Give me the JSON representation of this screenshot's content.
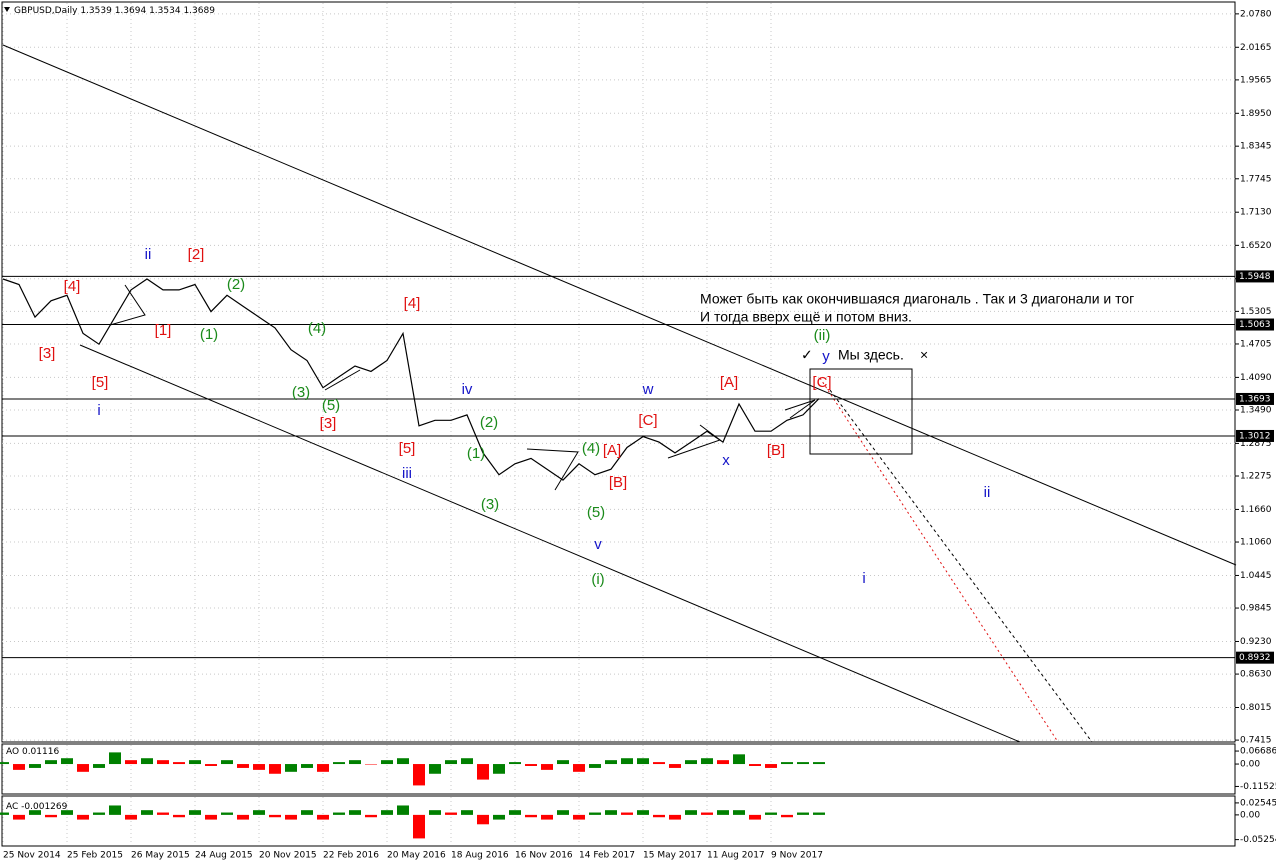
{
  "chart_data": [
    {
      "type": "line",
      "title": "GBPUSD,Daily",
      "ohlc": [
        1.3539,
        1.3694,
        1.3534,
        1.3689
      ],
      "categories": [
        "25 Nov 2014",
        null,
        null,
        null,
        "25 Feb 2015",
        null,
        null,
        null,
        "26 May 2015",
        null,
        null,
        null,
        "24 Aug 2015",
        null,
        null,
        null,
        "20 Nov 2015",
        null,
        null,
        null,
        "22 Feb 2016",
        null,
        null,
        null,
        "20 May 2016",
        null,
        null,
        null,
        "18 Aug 2016",
        null,
        null,
        null,
        "16 Nov 2016",
        null,
        null,
        null,
        "14 Feb 2017",
        null,
        null,
        null,
        "15 May 2017",
        null,
        null,
        null,
        "11 Aug 2017",
        null,
        null,
        null,
        "9 Nov 2017",
        null,
        null,
        null
      ],
      "values": [
        1.59,
        1.58,
        1.52,
        1.55,
        1.56,
        1.49,
        1.47,
        1.52,
        1.57,
        1.59,
        1.57,
        1.57,
        1.58,
        1.53,
        1.56,
        1.54,
        1.52,
        1.5,
        1.46,
        1.44,
        1.39,
        1.41,
        1.43,
        1.42,
        1.44,
        1.49,
        1.32,
        1.33,
        1.33,
        1.34,
        1.27,
        1.23,
        1.25,
        1.26,
        1.24,
        1.22,
        1.25,
        1.23,
        1.24,
        1.28,
        1.3,
        1.29,
        1.27,
        1.29,
        1.31,
        1.29,
        1.36,
        1.31,
        1.31,
        1.33,
        1.34,
        1.37
      ],
      "color": "#000000",
      "ylim": [
        0.738,
        2.098
      ],
      "yticks": [
        {
          "value": 2.078,
          "label": "2.0780"
        },
        2.0165,
        1.9565,
        {
          "value": 1.895,
          "label": "1.8950"
        },
        1.8345,
        1.7745,
        {
          "value": 1.713,
          "label": "1.7130"
        },
        {
          "value": 1.652,
          "label": "1.6520"
        },
        1.5905,
        1.5305,
        1.4705,
        {
          "value": 1.409,
          "label": "1.4090"
        },
        {
          "value": 1.349,
          "label": "1.3490"
        },
        1.2875,
        1.2275,
        {
          "value": 1.166,
          "label": "1.1660"
        },
        {
          "value": 1.106,
          "label": "1.1060"
        },
        1.0445,
        0.9845,
        {
          "value": 0.923,
          "label": "0.9230"
        },
        {
          "value": 0.863,
          "label": "0.8630"
        },
        0.8015,
        0.7415
      ],
      "grid": true,
      "levels": [
        1.5948,
        1.5063,
        1.3693,
        1.3012,
        0.8932
      ],
      "annotations": [
        "[4]",
        "[3]",
        "[5]",
        "i",
        "ii",
        "[2]",
        "[1]",
        "(2)",
        "(1)",
        "(4)",
        "(3)",
        "(5)",
        "[3]",
        "[4]",
        "[5]",
        "iii",
        "iv",
        "(2)",
        "(1)",
        "(3)",
        "(4)",
        "[A]",
        "[B]",
        "(5)",
        "v",
        "(i)",
        "w",
        "[C]",
        "x",
        "[A]",
        "[B]",
        "(ii)",
        "y",
        "[C]",
        "ii",
        "i",
        "Может быть как окончившаяся диагональ . Так и 3 диагонали и тог",
        "И тогда вверх ещё и потом вниз.",
        "✓",
        "Мы здесь.",
        "×"
      ]
    },
    {
      "type": "bar",
      "title": "AO",
      "current": 0.01116,
      "colors": [
        "#008000",
        "#ff0000"
      ],
      "values": [
        0.01,
        -0.03,
        -0.02,
        0.02,
        0.03,
        -0.04,
        -0.02,
        0.06,
        0.02,
        0.03,
        0.02,
        0.01,
        0.02,
        -0.01,
        0.02,
        -0.02,
        -0.03,
        -0.05,
        -0.04,
        -0.02,
        -0.04,
        0.01,
        0.02,
        0.0,
        0.02,
        0.03,
        -0.11,
        -0.05,
        0.02,
        0.03,
        -0.08,
        -0.05,
        0.01,
        -0.01,
        -0.03,
        0.02,
        -0.04,
        -0.02,
        0.02,
        0.03,
        0.03,
        0.01,
        -0.02,
        0.02,
        0.03,
        0.02,
        0.05,
        -0.01,
        -0.02,
        0.01,
        0.01,
        0.01
      ],
      "ylim": [
        -0.149,
        0.098
      ],
      "yticks": [
        0.06686,
        {
          "value": 0,
          "label": "0.00"
        },
        -0.11525
      ]
    },
    {
      "type": "bar",
      "title": "AC",
      "current": -0.001269,
      "colors": [
        "#008000",
        "#ff0000"
      ],
      "values": [
        0.005,
        -0.01,
        0.01,
        -0.005,
        0.01,
        -0.01,
        0.005,
        0.02,
        -0.01,
        0.01,
        0.005,
        -0.005,
        0.01,
        -0.01,
        0.005,
        -0.01,
        0.01,
        -0.005,
        -0.01,
        0.01,
        -0.01,
        0.005,
        0.01,
        -0.005,
        0.01,
        0.02,
        -0.05,
        0.01,
        0.005,
        0.01,
        -0.02,
        -0.01,
        0.01,
        -0.005,
        -0.01,
        0.01,
        -0.01,
        0.005,
        0.01,
        0.005,
        0.01,
        -0.005,
        -0.01,
        0.01,
        0.005,
        0.01,
        0.01,
        -0.01,
        0.005,
        -0.005,
        0.005,
        0.005
      ],
      "ylim": [
        -0.064,
        0.038
      ],
      "yticks": [
        0.025453,
        {
          "value": 0,
          "label": "0.00"
        },
        -0.05254
      ]
    }
  ]
}
